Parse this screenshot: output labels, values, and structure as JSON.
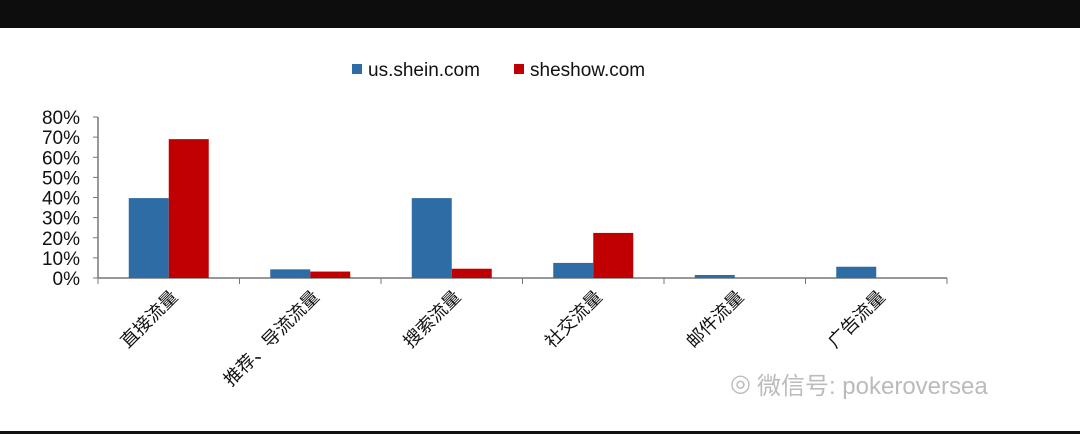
{
  "chart_data": {
    "type": "bar",
    "title": "",
    "xlabel": "",
    "ylabel": "",
    "categories": [
      "直接流量",
      "推荐、导流流量",
      "搜索流量",
      "社交流量",
      "邮件流量",
      "广告流量"
    ],
    "series": [
      {
        "name": "us.shein.com",
        "color": "#2e6ca6",
        "values": [
          39.7,
          4.3,
          39.7,
          7.5,
          1.5,
          5.6
        ]
      },
      {
        "name": "sheshow.com",
        "color": "#c00000",
        "values": [
          69,
          3.2,
          4.6,
          22.4,
          0,
          0
        ]
      }
    ],
    "ylim": [
      0,
      80
    ],
    "yticks": [
      "0%",
      "10%",
      "20%",
      "30%",
      "40%",
      "50%",
      "60%",
      "70%",
      "80%"
    ],
    "grid": false,
    "legend": "top"
  },
  "watermark": "微信号: pokeroversea"
}
